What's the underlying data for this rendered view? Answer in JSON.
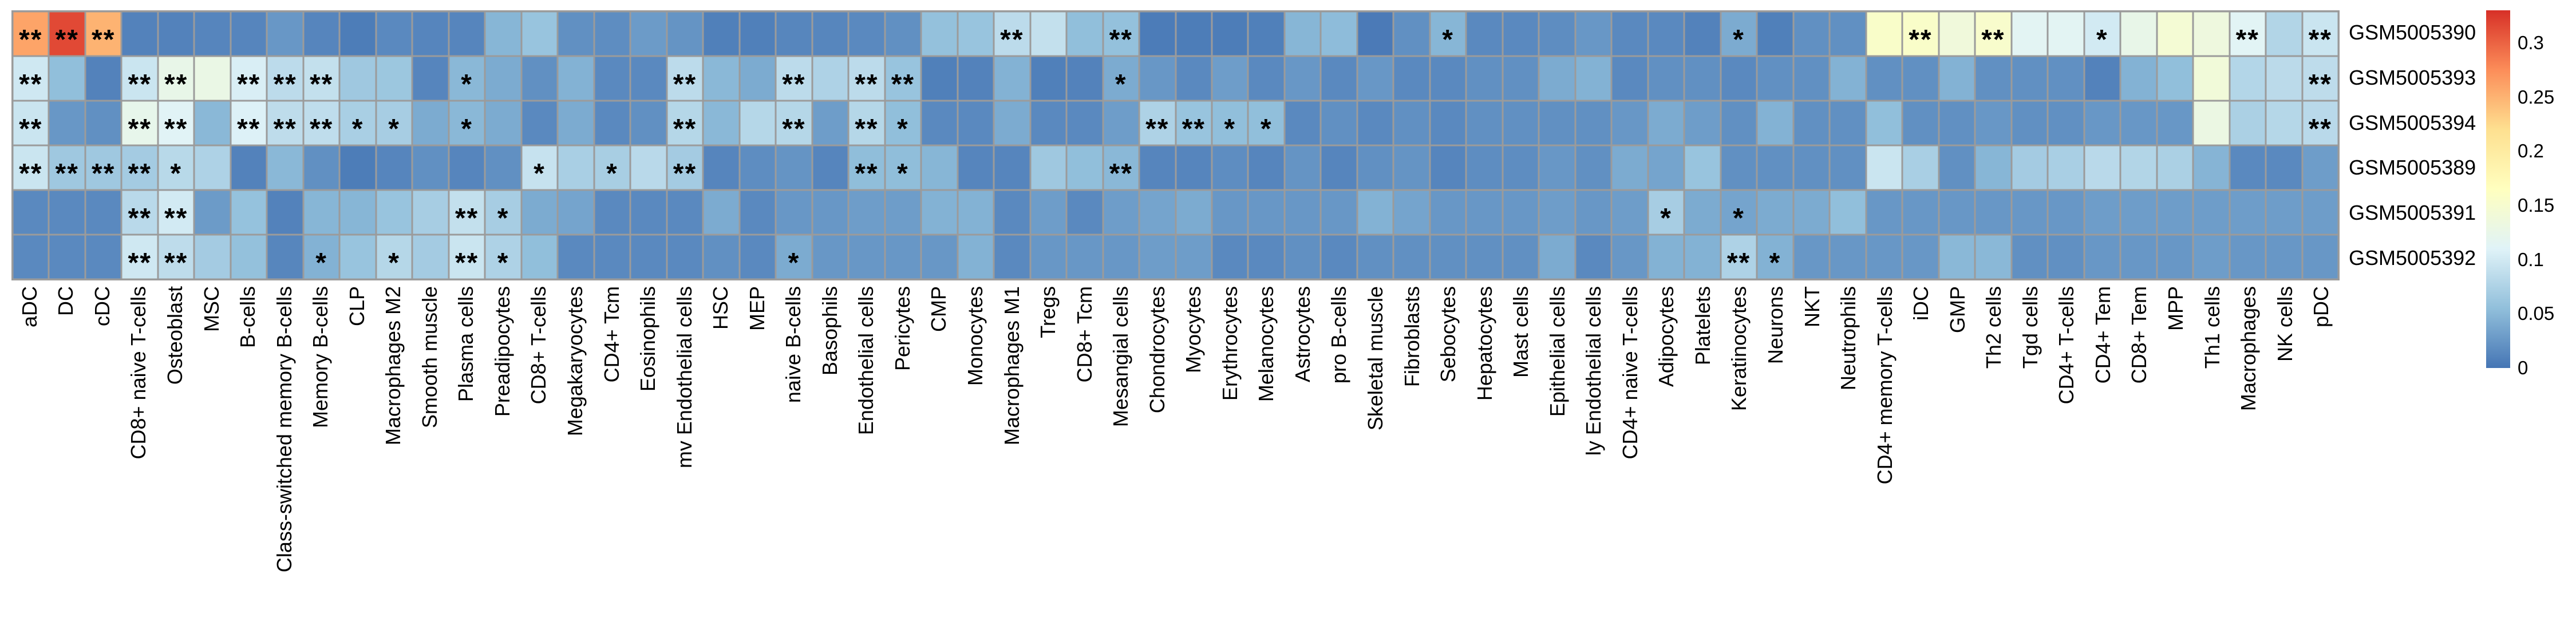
{
  "chart_data": {
    "type": "heatmap",
    "title": "",
    "rows": [
      "GSM5005390",
      "GSM5005393",
      "GSM5005394",
      "GSM5005389",
      "GSM5005391",
      "GSM5005392"
    ],
    "columns": [
      "aDC",
      "DC",
      "cDC",
      "CD8+ naive T-cells",
      "Osteoblast",
      "MSC",
      "B-cells",
      "Class-switched memory B-cells",
      "Memory B-cells",
      "CLP",
      "Macrophages M2",
      "Smooth muscle",
      "Plasma cells",
      "Preadipocytes",
      "CD8+ T-cells",
      "Megakaryocytes",
      "CD4+ Tcm",
      "Eosinophils",
      "mv Endothelial cells",
      "HSC",
      "MEP",
      "naive B-cells",
      "Basophils",
      "Endothelial cells",
      "Pericytes",
      "CMP",
      "Monocytes",
      "Macrophages M1",
      "Tregs",
      "CD8+ Tcm",
      "Mesangial cells",
      "Chondrocytes",
      "Myocytes",
      "Erythrocytes",
      "Melanocytes",
      "Astrocytes",
      "pro B-cells",
      "Skeletal muscle",
      "Fibroblasts",
      "Sebocytes",
      "Hepatocytes",
      "Mast cells",
      "Epithelial cells",
      "ly Endothelial cells",
      "CD4+ naive T-cells",
      "Adipocytes",
      "Platelets",
      "Keratinocytes",
      "Neurons",
      "NKT",
      "Neutrophils",
      "CD4+ memory T-cells",
      "iDC",
      "GMP",
      "Th2 cells",
      "Tgd cells",
      "CD4+ T-cells",
      "CD4+ Tem",
      "CD8+ Tem",
      "MPP",
      "Th1 cells",
      "Macrophages",
      "NK cells",
      "pDC"
    ],
    "values": [
      [
        0.26,
        0.315,
        0.25,
        0.01,
        0.01,
        0.012,
        0.012,
        0.025,
        0.012,
        0.006,
        0.015,
        0.012,
        0.012,
        0.048,
        0.06,
        0.02,
        0.018,
        0.028,
        0.023,
        0.008,
        0.008,
        0.013,
        0.013,
        0.015,
        0.02,
        0.057,
        0.06,
        0.085,
        0.09,
        0.055,
        0.057,
        0.005,
        0.006,
        0.006,
        0.008,
        0.048,
        0.053,
        0.004,
        0.02,
        0.048,
        0.015,
        0.015,
        0.018,
        0.025,
        0.015,
        0.015,
        0.01,
        0.04,
        0.008,
        0.02,
        0.02,
        0.155,
        0.155,
        0.138,
        0.152,
        0.115,
        0.115,
        0.1,
        0.125,
        0.145,
        0.135,
        0.113,
        0.078,
        0.095
      ],
      [
        0.098,
        0.055,
        0.01,
        0.095,
        0.125,
        0.128,
        0.105,
        0.085,
        0.09,
        0.065,
        0.063,
        0.012,
        0.05,
        0.04,
        0.02,
        0.045,
        0.015,
        0.015,
        0.085,
        0.05,
        0.04,
        0.085,
        0.075,
        0.085,
        0.06,
        0.008,
        0.01,
        0.045,
        0.008,
        0.01,
        0.04,
        0.025,
        0.015,
        0.03,
        0.015,
        0.025,
        0.015,
        0.025,
        0.015,
        0.015,
        0.02,
        0.02,
        0.04,
        0.045,
        0.015,
        0.02,
        0.02,
        0.015,
        0.02,
        0.02,
        0.045,
        0.02,
        0.02,
        0.045,
        0.02,
        0.02,
        0.02,
        0.01,
        0.045,
        0.055,
        0.14,
        0.079,
        0.084,
        0.086
      ],
      [
        0.095,
        0.025,
        0.02,
        0.123,
        0.112,
        0.05,
        0.108,
        0.086,
        0.087,
        0.072,
        0.07,
        0.04,
        0.05,
        0.04,
        0.015,
        0.04,
        0.015,
        0.02,
        0.08,
        0.05,
        0.08,
        0.08,
        0.03,
        0.08,
        0.055,
        0.015,
        0.015,
        0.04,
        0.015,
        0.015,
        0.03,
        0.075,
        0.06,
        0.055,
        0.055,
        0.015,
        0.02,
        0.015,
        0.02,
        0.015,
        0.02,
        0.02,
        0.02,
        0.02,
        0.025,
        0.04,
        0.03,
        0.02,
        0.045,
        0.02,
        0.02,
        0.055,
        0.02,
        0.02,
        0.025,
        0.02,
        0.02,
        0.025,
        0.025,
        0.025,
        0.13,
        0.073,
        0.08,
        0.083
      ],
      [
        0.095,
        0.065,
        0.065,
        0.068,
        0.082,
        0.075,
        0.01,
        0.05,
        0.02,
        0.006,
        0.012,
        0.02,
        0.012,
        0.02,
        0.092,
        0.072,
        0.071,
        0.083,
        0.068,
        0.012,
        0.018,
        0.023,
        0.012,
        0.054,
        0.054,
        0.048,
        0.012,
        0.012,
        0.065,
        0.055,
        0.05,
        0.012,
        0.012,
        0.018,
        0.012,
        0.023,
        0.012,
        0.02,
        0.023,
        0.012,
        0.018,
        0.018,
        0.025,
        0.02,
        0.04,
        0.035,
        0.06,
        0.02,
        0.02,
        0.02,
        0.02,
        0.095,
        0.072,
        0.02,
        0.048,
        0.068,
        0.072,
        0.083,
        0.078,
        0.073,
        0.047,
        0.015,
        0.015,
        0.03
      ],
      [
        0.015,
        0.015,
        0.015,
        0.083,
        0.1,
        0.028,
        0.058,
        0.01,
        0.048,
        0.048,
        0.06,
        0.07,
        0.09,
        0.07,
        0.04,
        0.035,
        0.015,
        0.015,
        0.015,
        0.04,
        0.015,
        0.025,
        0.025,
        0.03,
        0.03,
        0.045,
        0.045,
        0.015,
        0.03,
        0.015,
        0.03,
        0.035,
        0.04,
        0.025,
        0.025,
        0.025,
        0.025,
        0.045,
        0.035,
        0.025,
        0.025,
        0.025,
        0.03,
        0.025,
        0.03,
        0.07,
        0.04,
        0.035,
        0.04,
        0.04,
        0.055,
        0.025,
        0.025,
        0.025,
        0.025,
        0.025,
        0.025,
        0.03,
        0.03,
        0.03,
        0.03,
        0.03,
        0.03,
        0.03
      ],
      [
        0.015,
        0.015,
        0.015,
        0.098,
        0.086,
        0.068,
        0.057,
        0.013,
        0.045,
        0.06,
        0.08,
        0.068,
        0.095,
        0.075,
        0.055,
        0.015,
        0.015,
        0.015,
        0.015,
        0.02,
        0.015,
        0.04,
        0.025,
        0.025,
        0.025,
        0.025,
        0.045,
        0.015,
        0.025,
        0.025,
        0.025,
        0.03,
        0.03,
        0.015,
        0.015,
        0.02,
        0.015,
        0.02,
        0.02,
        0.02,
        0.02,
        0.02,
        0.04,
        0.015,
        0.025,
        0.045,
        0.045,
        0.075,
        0.045,
        0.025,
        0.025,
        0.025,
        0.025,
        0.05,
        0.05,
        0.02,
        0.02,
        0.025,
        0.025,
        0.025,
        0.03,
        0.025,
        0.025,
        0.025
      ]
    ],
    "significance": [
      {
        "0": "**",
        "1": "**",
        "2": "**",
        "27": "**",
        "30": "**",
        "39": "*",
        "47": "*",
        "52": "**",
        "54": "**",
        "57": "*",
        "61": "**",
        "63": "**"
      },
      {
        "0": "**",
        "3": "**",
        "4": "**",
        "6": "**",
        "7": "**",
        "8": "**",
        "12": "*",
        "18": "**",
        "21": "**",
        "23": "**",
        "24": "**",
        "30": "*",
        "63": "**"
      },
      {
        "0": "**",
        "3": "**",
        "4": "**",
        "6": "**",
        "7": "**",
        "8": "**",
        "9": "*",
        "10": "*",
        "12": "*",
        "18": "**",
        "21": "**",
        "23": "**",
        "24": "*",
        "31": "**",
        "32": "**",
        "33": "*",
        "34": "*",
        "63": "**"
      },
      {
        "0": "**",
        "1": "**",
        "2": "**",
        "3": "**",
        "4": "*",
        "14": "*",
        "16": "*",
        "18": "**",
        "23": "**",
        "24": "*",
        "30": "**"
      },
      {
        "3": "**",
        "4": "**",
        "12": "**",
        "13": "*",
        "45": "*",
        "47": "*"
      },
      {
        "3": "**",
        "4": "**",
        "8": "*",
        "10": "*",
        "12": "**",
        "13": "*",
        "21": "*",
        "47": "**",
        "48": "*"
      }
    ],
    "colorbar": {
      "position": "right",
      "vmin": 0,
      "vmax": 0.33,
      "tick_values": [
        0.3,
        0.25,
        0.2,
        0.15,
        0.1,
        0.05,
        0
      ],
      "tick_labels": [
        "0.3",
        "0.25",
        "0.2",
        "0.15",
        "0.1",
        "0.05",
        "0"
      ],
      "palette": [
        "#4575B4",
        "#91BFDB",
        "#E0F3F8",
        "#FFFFBF",
        "#FEE090",
        "#FC8D59",
        "#D73027"
      ]
    },
    "grid_color": "#9b9b9b",
    "star_color": "#000000",
    "layout": {
      "grid_on": true,
      "legend_position": "right",
      "column_labels_rotated": true
    }
  }
}
